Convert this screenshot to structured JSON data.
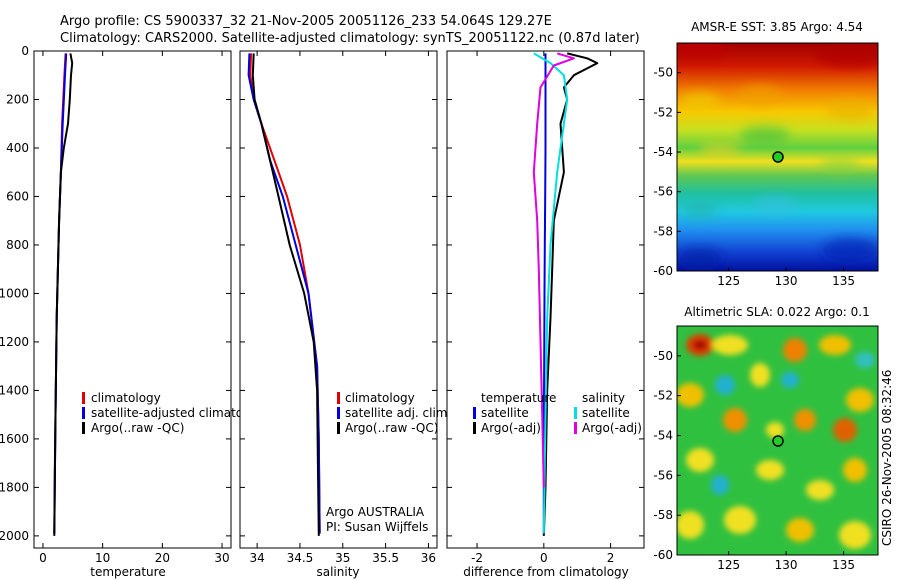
{
  "header": {
    "line1": "Argo profile: CS 5900337_32 21-Nov-2005 20051126_233 54.064S 129.27E",
    "line2": "Climatology: CARS2000. Satellite-adjusted climatology: synTS_20051122.nc (0.87d later)"
  },
  "stamp": "CSIRO 26-Nov-2005 08:32:46",
  "chart_data": [
    {
      "type": "line",
      "xlabel": "temperature",
      "ylabel": "",
      "xlim": [
        -1.5,
        31.5
      ],
      "ylim": [
        2050,
        0
      ],
      "xticks": [
        0,
        10,
        20,
        30
      ],
      "yticks": [
        0,
        200,
        400,
        600,
        800,
        1000,
        1200,
        1400,
        1600,
        1800,
        2000
      ],
      "legend": [
        "climatology",
        "satellite-adjusted climatology",
        "Argo(..raw -QC)"
      ],
      "series": [
        {
          "name": "climatology",
          "color": "#e00000",
          "x": [
            3.8,
            3.6,
            3.2,
            3.0,
            2.7,
            2.5,
            2.3,
            2.2,
            2.1,
            1.9
          ],
          "y": [
            10,
            100,
            300,
            500,
            700,
            900,
            1100,
            1300,
            1500,
            1990
          ]
        },
        {
          "name": "satellite-adjusted climatology",
          "color": "#0000e0",
          "x": [
            3.9,
            3.7,
            3.3,
            3.0,
            2.7,
            2.5,
            2.3,
            2.2,
            2.1,
            1.9
          ],
          "y": [
            10,
            100,
            300,
            500,
            700,
            900,
            1100,
            1300,
            1500,
            1990
          ]
        },
        {
          "name": "Argo(..raw -QC)",
          "color": "#000000",
          "x": [
            4.6,
            4.9,
            4.7,
            4.5,
            4.2,
            3.5,
            3.0,
            2.7,
            2.5,
            2.3,
            2.2,
            2.0,
            1.9
          ],
          "y": [
            10,
            50,
            100,
            200,
            300,
            400,
            500,
            700,
            900,
            1100,
            1300,
            1700,
            2000
          ]
        }
      ]
    },
    {
      "type": "line",
      "xlabel": "salinity",
      "xlim": [
        33.8,
        36.1
      ],
      "ylim": [
        2050,
        0
      ],
      "xticks": [
        34,
        34.5,
        35,
        35.5,
        36
      ],
      "legend": [
        "climatology",
        "satellite adj. clim.",
        "Argo(..raw -QC)"
      ],
      "annotation": [
        "Argo AUSTRALIA",
        "PI: Susan Wijffels"
      ],
      "series": [
        {
          "name": "climatology",
          "color": "#e00000",
          "x": [
            33.93,
            33.92,
            33.96,
            34.05,
            34.2,
            34.35,
            34.5,
            34.6,
            34.7,
            34.72,
            34.73
          ],
          "y": [
            10,
            100,
            200,
            300,
            450,
            600,
            800,
            1000,
            1300,
            1600,
            1990
          ]
        },
        {
          "name": "satellite adj. clim.",
          "color": "#0000e0",
          "x": [
            33.91,
            33.9,
            33.96,
            34.05,
            34.15,
            34.3,
            34.45,
            34.6,
            34.7,
            34.72,
            34.73
          ],
          "y": [
            10,
            100,
            200,
            300,
            450,
            600,
            800,
            1000,
            1300,
            1600,
            1990
          ]
        },
        {
          "name": "Argo(..raw -QC)",
          "color": "#000000",
          "x": [
            33.96,
            33.95,
            33.97,
            34.05,
            34.15,
            34.25,
            34.38,
            34.55,
            34.66,
            34.7,
            34.71,
            34.72
          ],
          "y": [
            10,
            100,
            200,
            300,
            450,
            600,
            800,
            1000,
            1200,
            1400,
            1700,
            2000
          ]
        }
      ]
    },
    {
      "type": "line",
      "xlabel": "difference from climatology",
      "xlim": [
        -2.9,
        3.0
      ],
      "ylim": [
        2050,
        0
      ],
      "xticks": [
        -2,
        0,
        2
      ],
      "legend_left_title": "temperature",
      "legend_right_title": "salinity",
      "legend_left": [
        "satellite",
        "Argo(-adj)"
      ],
      "legend_right": [
        "satellite",
        "Argo(-adj)"
      ],
      "series": [
        {
          "name": "temperature satellite",
          "color": "#0000e0",
          "x": [
            0.05,
            0.05,
            0.05,
            0.04,
            0.03,
            0.02,
            0.01,
            0.0,
            0.0
          ],
          "y": [
            10,
            200,
            400,
            600,
            800,
            1000,
            1300,
            1600,
            1990
          ]
        },
        {
          "name": "temperature Argo(-adj)",
          "color": "#000000",
          "x": [
            0.7,
            1.3,
            1.6,
            0.9,
            0.6,
            0.7,
            0.5,
            0.6,
            0.3,
            0.25,
            0.2,
            0.1,
            0.05,
            0.0
          ],
          "y": [
            10,
            30,
            50,
            100,
            150,
            200,
            300,
            500,
            700,
            900,
            1100,
            1400,
            1800,
            2000
          ]
        },
        {
          "name": "salinity satellite",
          "color": "#00e0e0",
          "x": [
            -0.3,
            0.2,
            0.6,
            0.7,
            0.6,
            0.4,
            0.2,
            0.1,
            0.05,
            0.0
          ],
          "y": [
            10,
            50,
            100,
            200,
            300,
            500,
            800,
            1100,
            1500,
            1990
          ]
        },
        {
          "name": "salinity Argo(-adj)",
          "color": "#e000e0",
          "x": [
            0.4,
            0.9,
            0.3,
            -0.1,
            -0.2,
            -0.3,
            -0.2,
            -0.15,
            -0.1,
            -0.05,
            0.0
          ],
          "y": [
            10,
            30,
            60,
            150,
            300,
            500,
            700,
            900,
            1200,
            1500,
            1800
          ]
        }
      ]
    },
    {
      "type": "heatmap",
      "title": "AMSR-E SST: 3.85 Argo: 4.54",
      "xlim": [
        120.5,
        138
      ],
      "ylim": [
        -60,
        -48.5
      ],
      "xticks": [
        125,
        130,
        135
      ],
      "yticks": [
        -50,
        -52,
        -54,
        -56,
        -58,
        -60
      ],
      "marker": {
        "lon": 129.27,
        "lat": -54.064
      }
    },
    {
      "type": "heatmap",
      "title": "Altimetric SLA: 0.022 Argo: 0.1",
      "xlim": [
        120.5,
        138
      ],
      "ylim": [
        -60,
        -48.5
      ],
      "xticks": [
        125,
        130,
        135
      ],
      "yticks": [
        -50,
        -52,
        -54,
        -56,
        -58,
        -60
      ],
      "marker": {
        "lon": 129.27,
        "lat": -54.064
      }
    }
  ]
}
